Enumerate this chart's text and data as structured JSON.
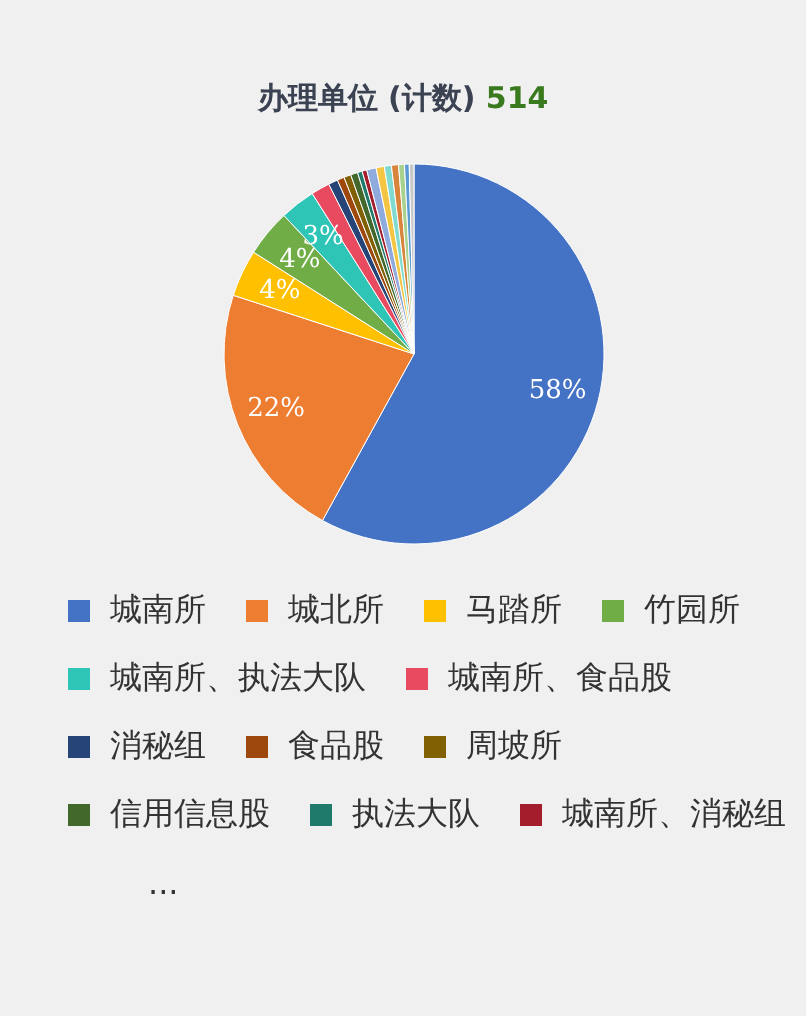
{
  "chart_data": {
    "type": "pie",
    "title": "办理单位 (计数)",
    "subtitle": "514",
    "categories": [
      "城南所",
      "城北所",
      "马踏所",
      "竹园所",
      "城南所、执法大队",
      "城南所、食品股",
      "消秘组",
      "食品股",
      "周坡所",
      "信用信息股",
      "执法大队",
      "城南所、消秘组",
      null,
      null,
      null,
      null,
      null,
      null,
      null
    ],
    "values": [
      58,
      22,
      4,
      4,
      3,
      1.6,
      0.8,
      0.6,
      0.6,
      0.6,
      0.4,
      0.4,
      0.8,
      0.7,
      0.6,
      0.6,
      0.5,
      0.4,
      0.4
    ],
    "colors": [
      "#4472c4",
      "#ed7d31",
      "#ffc000",
      "#70ad47",
      "#2ec4b6",
      "#e84a5f",
      "#264478",
      "#9e480e",
      "#806000",
      "#43682b",
      "#1f7a6b",
      "#a31d2d",
      "#8faadc",
      "#f4c542",
      "#7fdbd0",
      "#d8843a",
      "#a9d18e",
      "#5b9bd5",
      "#c9c9c9"
    ],
    "value_labels": [
      "58%",
      "22%",
      "4%",
      "4%",
      "3%",
      null,
      null,
      null,
      null,
      null,
      null,
      null,
      null,
      null,
      null,
      null,
      null,
      null,
      null
    ],
    "legend": "bottom",
    "annotations": [
      "..."
    ]
  }
}
